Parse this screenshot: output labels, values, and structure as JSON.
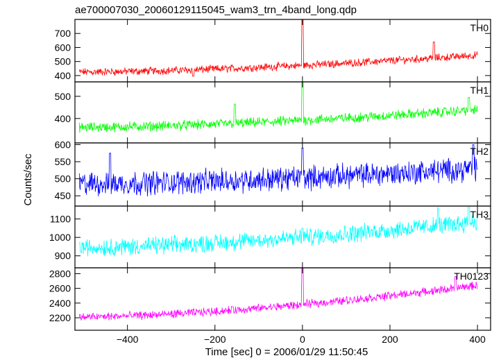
{
  "title": "ae700007030_20060129115045_wam3_trn_4band_long.qdp",
  "xlabel": "Time [sec] 0 = 2006/01/29 11:50:45",
  "ylabel": "Counts/sec",
  "chart_data": [
    {
      "type": "line",
      "name": "TH0",
      "color": "#ff0000",
      "xlim": [
        -520,
        430
      ],
      "ylim": [
        355,
        800
      ],
      "yticks": [
        400,
        500,
        600,
        700
      ],
      "baseline_start": 425,
      "baseline_end": 545,
      "noise": 22,
      "features": [
        {
          "x": 0,
          "value": 810
        },
        {
          "x": -250,
          "value": 395
        },
        {
          "x": 300,
          "value": 640
        }
      ]
    },
    {
      "type": "line",
      "name": "TH1",
      "color": "#00ff00",
      "xlim": [
        -520,
        430
      ],
      "ylim": [
        290,
        565
      ],
      "yticks": [
        400,
        500
      ],
      "baseline_start": 360,
      "baseline_end": 440,
      "noise": 18,
      "features": [
        {
          "x": 0,
          "value": 565
        },
        {
          "x": -155,
          "value": 465
        },
        {
          "x": 380,
          "value": 495
        }
      ]
    },
    {
      "type": "line",
      "name": "TH2",
      "color": "#0000ff",
      "xlim": [
        -520,
        430
      ],
      "ylim": [
        420,
        605
      ],
      "yticks": [
        450,
        500,
        550,
        600
      ],
      "baseline_start": 485,
      "baseline_end": 530,
      "noise": 28,
      "features": [
        {
          "x": 0,
          "value": 590
        },
        {
          "x": -440,
          "value": 575
        },
        {
          "x": 390,
          "value": 600
        }
      ]
    },
    {
      "type": "line",
      "name": "TH3",
      "color": "#00ffff",
      "xlim": [
        -520,
        430
      ],
      "ylim": [
        835,
        1170
      ],
      "yticks": [
        900,
        1000,
        1100
      ],
      "baseline_start": 945,
      "baseline_end": 1085,
      "noise": 38,
      "features": [
        {
          "x": 0,
          "value": 1050
        },
        {
          "x": 310,
          "value": 1160
        },
        {
          "x": 380,
          "value": 1170
        }
      ]
    },
    {
      "type": "line",
      "name": "TH0123",
      "color": "#ff00ff",
      "xlim": [
        -520,
        430
      ],
      "ylim": [
        2030,
        2880
      ],
      "yticks": [
        2200,
        2400,
        2600,
        2800
      ],
      "baseline_start": 2210,
      "baseline_end": 2640,
      "noise": 45,
      "features": [
        {
          "x": 0,
          "value": 2880
        },
        {
          "x": -160,
          "value": 2350
        },
        {
          "x": 350,
          "value": 2760
        }
      ]
    }
  ],
  "x_axis": {
    "ticks": [
      -400,
      -200,
      0,
      200,
      400
    ],
    "tick_labels": [
      "−400",
      "−200",
      "0",
      "200",
      "400"
    ]
  }
}
